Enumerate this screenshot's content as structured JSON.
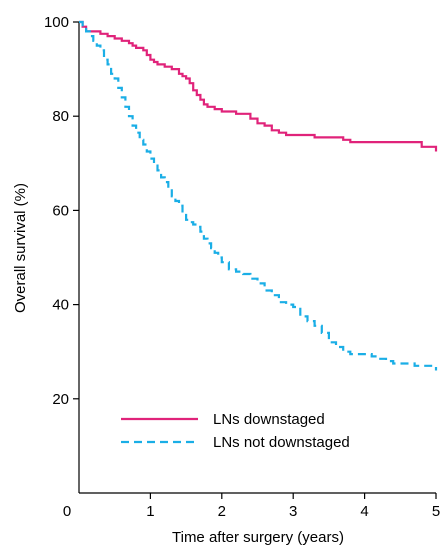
{
  "chart_data": {
    "type": "line",
    "title": "",
    "xlabel": "Time after surgery (years)",
    "ylabel": "Overall survival (%)",
    "xlim": [
      0,
      5
    ],
    "ylim": [
      0,
      100
    ],
    "x_ticks": [
      "0",
      "1",
      "2",
      "3",
      "4",
      "5"
    ],
    "y_ticks": [
      "20",
      "40",
      "60",
      "80",
      "100"
    ],
    "x_tick_values": [
      0,
      1,
      2,
      3,
      4,
      5
    ],
    "y_tick_values": [
      20,
      40,
      60,
      80,
      100
    ],
    "grid": false,
    "legend_position": "bottom-left",
    "series": [
      {
        "name": "LNs downstaged",
        "color": "#e0237a",
        "line_style": "solid",
        "x": [
          0,
          0.05,
          0.1,
          0.2,
          0.3,
          0.4,
          0.5,
          0.6,
          0.7,
          0.75,
          0.8,
          0.9,
          0.95,
          1.0,
          1.05,
          1.1,
          1.2,
          1.3,
          1.4,
          1.45,
          1.5,
          1.55,
          1.6,
          1.65,
          1.7,
          1.75,
          1.8,
          1.9,
          2.0,
          2.1,
          2.2,
          2.3,
          2.4,
          2.5,
          2.6,
          2.7,
          2.8,
          2.9,
          3.0,
          3.1,
          3.2,
          3.3,
          3.4,
          3.5,
          3.6,
          3.7,
          3.8,
          3.9,
          4.0,
          4.2,
          4.4,
          4.6,
          4.7,
          4.8,
          4.9,
          5.0
        ],
        "y": [
          100,
          99,
          98,
          98,
          97.5,
          97,
          96.5,
          96,
          95.5,
          95,
          94.5,
          94,
          93,
          92,
          91.5,
          91,
          90.5,
          90,
          89,
          88.5,
          88,
          87,
          85.5,
          84.5,
          83.5,
          82.5,
          82,
          81.5,
          81,
          81,
          80.5,
          80.5,
          79.5,
          78.5,
          78,
          77,
          76.5,
          76,
          76,
          76,
          76,
          75.5,
          75.5,
          75.5,
          75.5,
          75,
          74.5,
          74.5,
          74.5,
          74.5,
          74.5,
          74.5,
          74.5,
          73.5,
          73.5,
          72.5
        ]
      },
      {
        "name": "LNs not downstaged",
        "color": "#1aaee6",
        "line_style": "dashed",
        "x": [
          0,
          0.05,
          0.1,
          0.15,
          0.2,
          0.25,
          0.3,
          0.35,
          0.4,
          0.45,
          0.5,
          0.55,
          0.6,
          0.65,
          0.7,
          0.75,
          0.8,
          0.85,
          0.9,
          0.95,
          1.0,
          1.05,
          1.1,
          1.15,
          1.2,
          1.25,
          1.3,
          1.35,
          1.4,
          1.45,
          1.5,
          1.55,
          1.6,
          1.65,
          1.7,
          1.75,
          1.8,
          1.85,
          1.9,
          1.95,
          2.0,
          2.1,
          2.2,
          2.3,
          2.4,
          2.5,
          2.6,
          2.7,
          2.8,
          2.9,
          3.0,
          3.1,
          3.2,
          3.3,
          3.4,
          3.5,
          3.6,
          3.7,
          3.8,
          3.9,
          4.0,
          4.1,
          4.2,
          4.3,
          4.4,
          4.5,
          4.6,
          4.7,
          4.8,
          4.9,
          4.95,
          5.0
        ],
        "y": [
          100,
          99,
          98,
          97,
          96,
          95,
          94,
          92,
          91,
          89,
          88,
          86,
          84,
          82,
          80,
          78,
          76.5,
          75,
          74,
          72.5,
          71,
          70,
          68.5,
          67,
          66,
          64.5,
          63,
          62,
          61,
          59.5,
          58,
          57.5,
          57,
          56.5,
          55.5,
          54,
          53,
          52,
          51,
          50,
          49,
          47.5,
          47,
          46.5,
          45.5,
          44.5,
          43,
          42,
          40.5,
          40,
          39.5,
          37.5,
          36.5,
          35.5,
          34,
          32,
          31,
          30,
          29.5,
          29.5,
          29.5,
          29,
          28.5,
          28,
          27.5,
          27.5,
          27.5,
          27,
          27,
          27,
          27,
          26
        ]
      }
    ]
  }
}
